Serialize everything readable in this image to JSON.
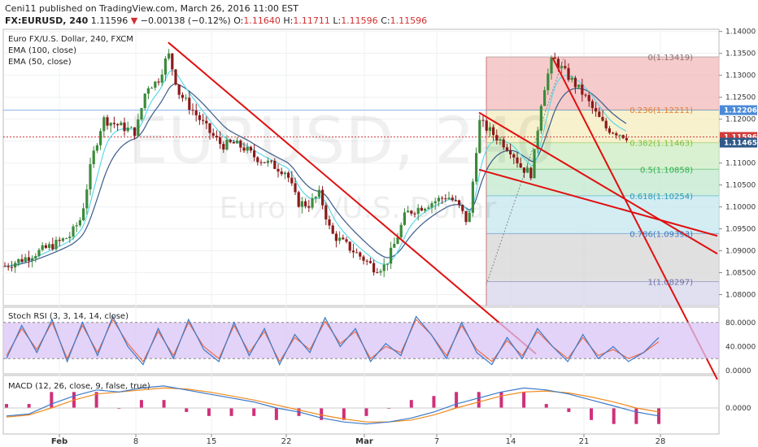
{
  "header": {
    "line1": {
      "user": "Ceni11",
      "rest": " published on TradingView.com, March 26, 2016 11:00 EST"
    },
    "line2": {
      "ticker": "FX:EURUSD, 240",
      "last": "1.11596",
      "change": "−0.00138 (−0.12%)",
      "o_label": "O:",
      "o": "1.11640",
      "h_label": "H:",
      "h": "1.11711",
      "l_label": "L:",
      "l": "1.11596",
      "c_label": "C:",
      "c": "1.11596"
    }
  },
  "colors": {
    "candle_up": "#3c8a3c",
    "candle_down": "#8b1a1a",
    "ema100": "#3b5a8a",
    "ema50": "#5fd8e8",
    "trendline": "#e01010",
    "stoch_k": "#3b79c8",
    "stoch_d": "#ef6c4a",
    "stoch_band": "#d9c4f5",
    "macd_line": "#3b79c8",
    "signal_line": "#f08a1d",
    "hist": "#d0307a"
  },
  "main_legend": {
    "title": "Euro FX/U.S. Dollar, 240, FXCM",
    "ema100": "EMA (100, close)",
    "ema50": "EMA (50, close)"
  },
  "watermark": {
    "symbol": "EURUSD, 240",
    "name": "Euro FX/U.S. Dollar"
  },
  "price_axis": {
    "ticks": [
      "1.14000",
      "1.13500",
      "1.13000",
      "1.12500",
      "1.12000",
      "1.11500",
      "1.11000",
      "1.10500",
      "1.10000",
      "1.09500",
      "1.09000",
      "1.08500",
      "1.08000"
    ],
    "labels": [
      {
        "text": "1.12206",
        "value": 1.12206,
        "bg": "#4a8ad8"
      },
      {
        "text": "1.11596",
        "value": 1.11596,
        "bg": "#d23c3c"
      },
      {
        "text": "1.11465",
        "value": 1.11465,
        "bg": "#2e5a8a"
      }
    ]
  },
  "fibonacci": {
    "levels": [
      {
        "label": "0(1.13419)",
        "value": 1.13419,
        "color": "#f3bebe",
        "text": "#8a7070"
      },
      {
        "label": "0.236(1.12211)",
        "value": 1.12211,
        "color": "#f5eec0",
        "text": "#e07f30"
      },
      {
        "label": "0.382(1.11463)",
        "value": 1.11463,
        "color": "#cfeec5",
        "text": "#7fbf3a"
      },
      {
        "label": "0.5(1.10858)",
        "value": 1.10858,
        "color": "#c4ead1",
        "text": "#2fae4a"
      },
      {
        "label": "0.618(1.10254)",
        "value": 1.10254,
        "color": "#c8e8f0",
        "text": "#2a9ab8"
      },
      {
        "label": "0.786(1.09393)",
        "value": 1.09393,
        "color": "#d8d8d8",
        "text": "#3a78c0"
      },
      {
        "label": "1(1.08297)",
        "value": 1.08297,
        "color": "#d8d8ec",
        "text": "#7070a8"
      }
    ]
  },
  "stoch_legend": "Stoch RSI (3, 3, 14, 14, close)",
  "stoch_axis": [
    "80.0000",
    "40.0000",
    "0.0000"
  ],
  "macd_legend": "MACD (12, 26, close, 9, false, true)",
  "macd_axis": [
    "0.0000"
  ],
  "time_axis": [
    "Feb",
    "8",
    "15",
    "22",
    "Mar",
    "7",
    "14",
    "21",
    "28"
  ],
  "chart_data": {
    "type": "candlestick",
    "title": "Euro FX/U.S. Dollar, 240, FXCM",
    "interval": "240",
    "ylim": [
      1.0775,
      1.1405
    ],
    "trendlines": [
      {
        "from": [
          "Feb 11",
          1.1375
        ],
        "to": [
          "Mar 11",
          1.0775
        ]
      },
      {
        "from": [
          "Mar 11",
          1.1215
        ],
        "to": [
          "Mar 28",
          1.097
        ]
      },
      {
        "from": [
          "Mar 11",
          1.1085
        ],
        "to": [
          "Mar 28",
          1.097
        ]
      },
      {
        "from": [
          "Mar 18",
          1.134
        ],
        "to": [
          "Mar 28",
          1.086
        ]
      }
    ],
    "close_path": [
      [
        "Jan 27",
        1.0865
      ],
      [
        "Jan 29",
        1.0885
      ],
      [
        "Feb 1",
        1.092
      ],
      [
        "Feb 2",
        1.0935
      ],
      [
        "Feb 3",
        1.0975
      ],
      [
        "Feb 4",
        1.111
      ],
      [
        "Feb 5",
        1.12
      ],
      [
        "Feb 8",
        1.117
      ],
      [
        "Feb 9",
        1.1275
      ],
      [
        "Feb 10",
        1.1285
      ],
      [
        "Feb 11",
        1.135
      ],
      [
        "Feb 12",
        1.126
      ],
      [
        "Feb 15",
        1.1165
      ],
      [
        "Feb 16",
        1.114
      ],
      [
        "Feb 17",
        1.1145
      ],
      [
        "Feb 18",
        1.1135
      ],
      [
        "Feb 19",
        1.1115
      ],
      [
        "Feb 22",
        1.108
      ],
      [
        "Feb 23",
        1.101
      ],
      [
        "Feb 24",
        1.1005
      ],
      [
        "Feb 25",
        1.103
      ],
      [
        "Feb 26",
        1.094
      ],
      [
        "Feb 29",
        1.088
      ],
      [
        "Mar 1",
        1.086
      ],
      [
        "Mar 2",
        1.0865
      ],
      [
        "Mar 3",
        1.092
      ],
      [
        "Mar 4",
        1.0985
      ],
      [
        "Mar 7",
        1.1015
      ],
      [
        "Mar 8",
        1.1025
      ],
      [
        "Mar 9",
        1.1005
      ],
      [
        "Mar 10",
        1.096
      ],
      [
        "Mar 11",
        1.1195
      ],
      [
        "Mar 14",
        1.113
      ],
      [
        "Mar 15",
        1.109
      ],
      [
        "Mar 16",
        1.1075
      ],
      [
        "Mar 17",
        1.1255
      ],
      [
        "Mar 18",
        1.134
      ],
      [
        "Mar 21",
        1.1255
      ],
      [
        "Mar 22",
        1.1215
      ],
      [
        "Mar 23",
        1.118
      ],
      [
        "Mar 24",
        1.117
      ],
      [
        "Mar 25",
        1.116
      ]
    ],
    "stoch_k": [
      20,
      75,
      30,
      85,
      15,
      80,
      25,
      90,
      40,
      10,
      70,
      20,
      85,
      35,
      15,
      80,
      25,
      70,
      10,
      60,
      30,
      88,
      40,
      70,
      15,
      45,
      25,
      90,
      60,
      20,
      80,
      30,
      10,
      55,
      20,
      70,
      40,
      15,
      60,
      20,
      40,
      15,
      30,
      55
    ],
    "stoch_d": [
      25,
      70,
      35,
      80,
      20,
      75,
      30,
      85,
      45,
      15,
      65,
      25,
      80,
      40,
      20,
      75,
      30,
      65,
      15,
      55,
      35,
      82,
      45,
      65,
      20,
      40,
      30,
      85,
      60,
      25,
      75,
      35,
      15,
      50,
      25,
      65,
      40,
      20,
      55,
      25,
      35,
      20,
      30,
      48
    ],
    "macd": [
      -0.0008,
      -0.0006,
      0.0004,
      0.0012,
      0.0018,
      0.0016,
      0.002,
      0.0022,
      0.0018,
      0.0014,
      0.001,
      0.0006,
      0.0,
      -0.0004,
      -0.001,
      -0.0014,
      -0.0016,
      -0.0014,
      -0.001,
      -0.0004,
      0.0004,
      0.001,
      0.0016,
      0.002,
      0.0018,
      0.0014,
      0.0008,
      0.0002,
      -0.0004,
      -0.0008
    ],
    "signal": [
      -0.0009,
      -0.0007,
      0.0,
      0.0008,
      0.0014,
      0.0016,
      0.0018,
      0.002,
      0.0019,
      0.0016,
      0.0012,
      0.0008,
      0.0003,
      -0.0002,
      -0.0007,
      -0.0011,
      -0.0014,
      -0.0014,
      -0.0012,
      -0.0007,
      0.0,
      0.0006,
      0.0012,
      0.0016,
      0.0017,
      0.0015,
      0.0011,
      0.0006,
      0.0,
      -0.0004
    ],
    "grid": true
  }
}
